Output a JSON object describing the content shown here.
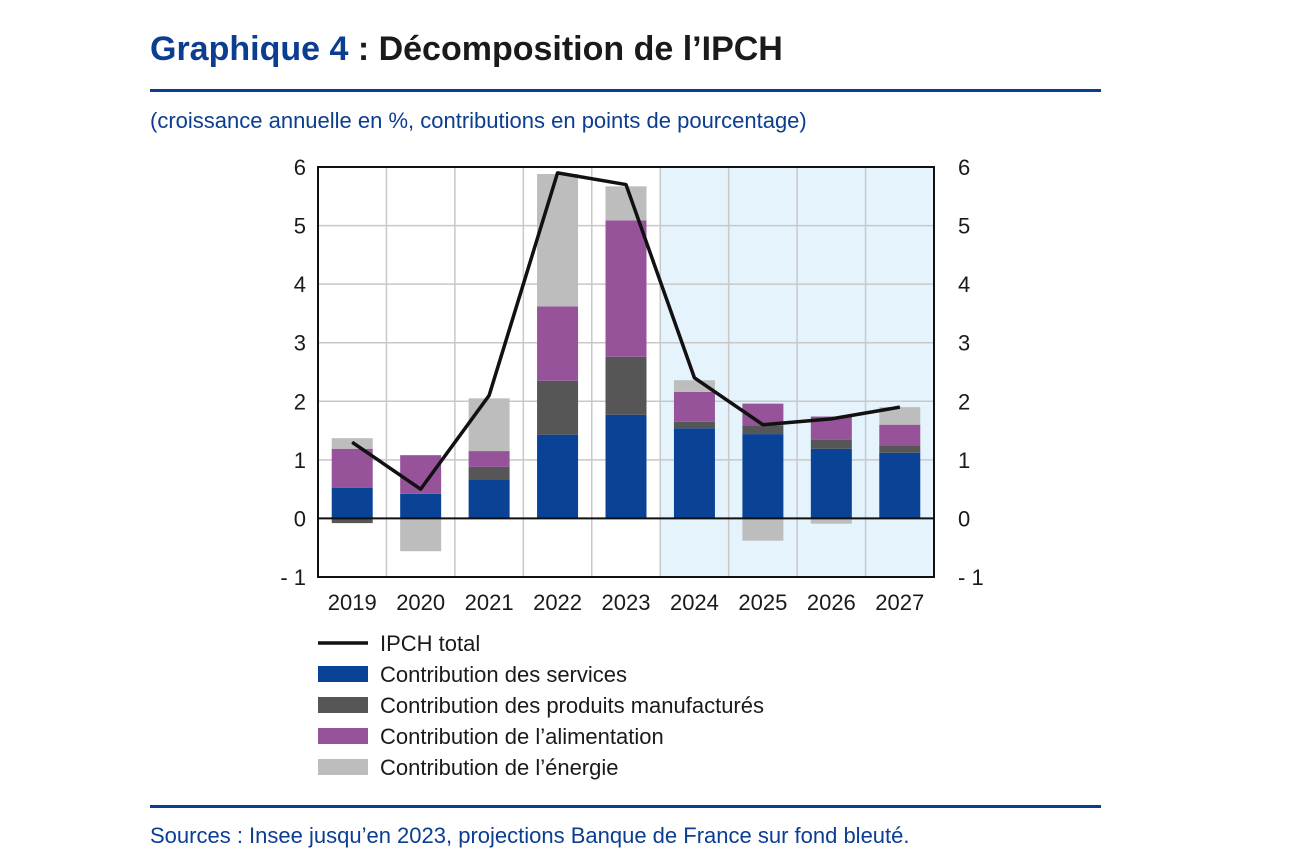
{
  "header": {
    "title_prefix": "Graphique 4",
    "title_rest": " : Décomposition de l’IPCH",
    "subtitle": "(croissance annuelle en %, contributions en points de pourcentage)",
    "source": "Sources : Insee jusqu’en 2023, projections Banque de France sur fond bleuté."
  },
  "colors": {
    "accent": "#0b3d91",
    "services": "#0a4396",
    "manufactures": "#565656",
    "alimentation": "#965399",
    "energie": "#bdbdbd",
    "projection_background": "#e5f4fc",
    "line": "#111111"
  },
  "chart_data": {
    "type": "bar",
    "stacked": true,
    "categories": [
      "2019",
      "2020",
      "2021",
      "2022",
      "2023",
      "2024",
      "2025",
      "2026",
      "2027"
    ],
    "ylim": [
      -1,
      6
    ],
    "yticks": [
      -1,
      0,
      1,
      2,
      3,
      4,
      5,
      6
    ],
    "ytick_labels": [
      "- 1",
      "0",
      "1",
      "2",
      "3",
      "4",
      "5",
      "6"
    ],
    "projection_from": "2024",
    "grid": true,
    "series": [
      {
        "name": "Contribution des services",
        "key": "services",
        "values": [
          0.52,
          0.42,
          0.67,
          1.43,
          1.77,
          1.54,
          1.44,
          1.19,
          1.12
        ]
      },
      {
        "name": "Contribution des produits manufacturés",
        "key": "manufactures",
        "values": [
          -0.08,
          0.0,
          0.21,
          0.92,
          0.99,
          0.11,
          0.15,
          0.15,
          0.13
        ]
      },
      {
        "name": "Contribution de l’alimentation",
        "key": "alimentation",
        "values": [
          0.67,
          0.66,
          0.27,
          1.27,
          2.33,
          0.51,
          0.37,
          0.4,
          0.35
        ]
      },
      {
        "name": "Contribution de l’énergie",
        "key": "energie",
        "values": [
          0.18,
          -0.56,
          0.9,
          2.26,
          0.58,
          0.2,
          -0.38,
          -0.09,
          0.3
        ]
      }
    ],
    "line": {
      "name": "IPCH total",
      "values": [
        1.3,
        0.5,
        2.1,
        5.9,
        5.7,
        2.4,
        1.6,
        1.7,
        1.9
      ]
    },
    "legend": [
      {
        "label": "IPCH total",
        "kind": "line",
        "key": "line"
      },
      {
        "label": "Contribution des services",
        "kind": "box",
        "key": "services"
      },
      {
        "label": "Contribution des produits manufacturés",
        "kind": "box",
        "key": "manufactures"
      },
      {
        "label": "Contribution de l’alimentation",
        "kind": "box",
        "key": "alimentation"
      },
      {
        "label": "Contribution de l’énergie",
        "kind": "box",
        "key": "energie"
      }
    ],
    "legend_position": "bottom"
  }
}
